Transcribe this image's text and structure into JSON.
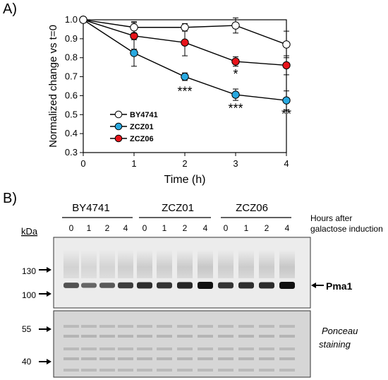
{
  "panel_a_label": "A)",
  "panel_b_label": "B)",
  "chart_data": {
    "type": "line",
    "xlabel": "Time (h)",
    "ylabel": "Normalized change vs t=0",
    "x": [
      0,
      1,
      2,
      3,
      4
    ],
    "xlim": [
      0,
      4
    ],
    "ylim": [
      0.3,
      1.0
    ],
    "xticks": [
      "0",
      "1",
      "2",
      "3",
      "4"
    ],
    "yticks": [
      "0.3",
      "0.4",
      "0.5",
      "0.6",
      "0.7",
      "0.8",
      "0.9",
      "1.0"
    ],
    "grid": false,
    "legend_position": "lower-left",
    "series": [
      {
        "name": "BY4741",
        "color": "#ffffff",
        "values": [
          1.0,
          0.96,
          0.96,
          0.97,
          0.87
        ],
        "errors": [
          0,
          0.03,
          0.02,
          0.04,
          0.07
        ]
      },
      {
        "name": "ZCZ01",
        "color": "#29a9e0",
        "values": [
          1.0,
          0.825,
          0.7,
          0.605,
          0.575
        ],
        "errors": [
          0,
          0.07,
          0.02,
          0.03,
          0.05
        ]
      },
      {
        "name": "ZCZ06",
        "color": "#e8141b",
        "values": [
          1.0,
          0.915,
          0.88,
          0.78,
          0.76
        ],
        "errors": [
          0,
          0.07,
          0.07,
          0.025,
          0.05
        ]
      }
    ],
    "annotations": [
      {
        "text": "***",
        "x": 2,
        "y": 0.63
      },
      {
        "text": "*",
        "x": 3,
        "y": 0.72
      },
      {
        "text": "***",
        "x": 3,
        "y": 0.54
      },
      {
        "text": "**",
        "x": 4,
        "y": 0.51
      }
    ]
  },
  "blot": {
    "strains": [
      "BY4741",
      "ZCZ01",
      "ZCZ06"
    ],
    "lane_hours": [
      "0",
      "1",
      "2",
      "4",
      "0",
      "1",
      "2",
      "4",
      "0",
      "1",
      "2",
      "4"
    ],
    "hours_caption_line1": "Hours after",
    "hours_caption_line2": "galactose induction",
    "kda_label": "kDa",
    "upper_markers": [
      "130",
      "100"
    ],
    "lower_markers": [
      "55",
      "40"
    ],
    "band_label": "Pma1",
    "band_intensity": [
      0.55,
      0.4,
      0.5,
      0.7,
      0.8,
      0.75,
      0.85,
      1.0,
      0.75,
      0.8,
      0.82,
      1.0
    ],
    "stain_label_line1": "Ponceau",
    "stain_label_line2": "staining"
  }
}
